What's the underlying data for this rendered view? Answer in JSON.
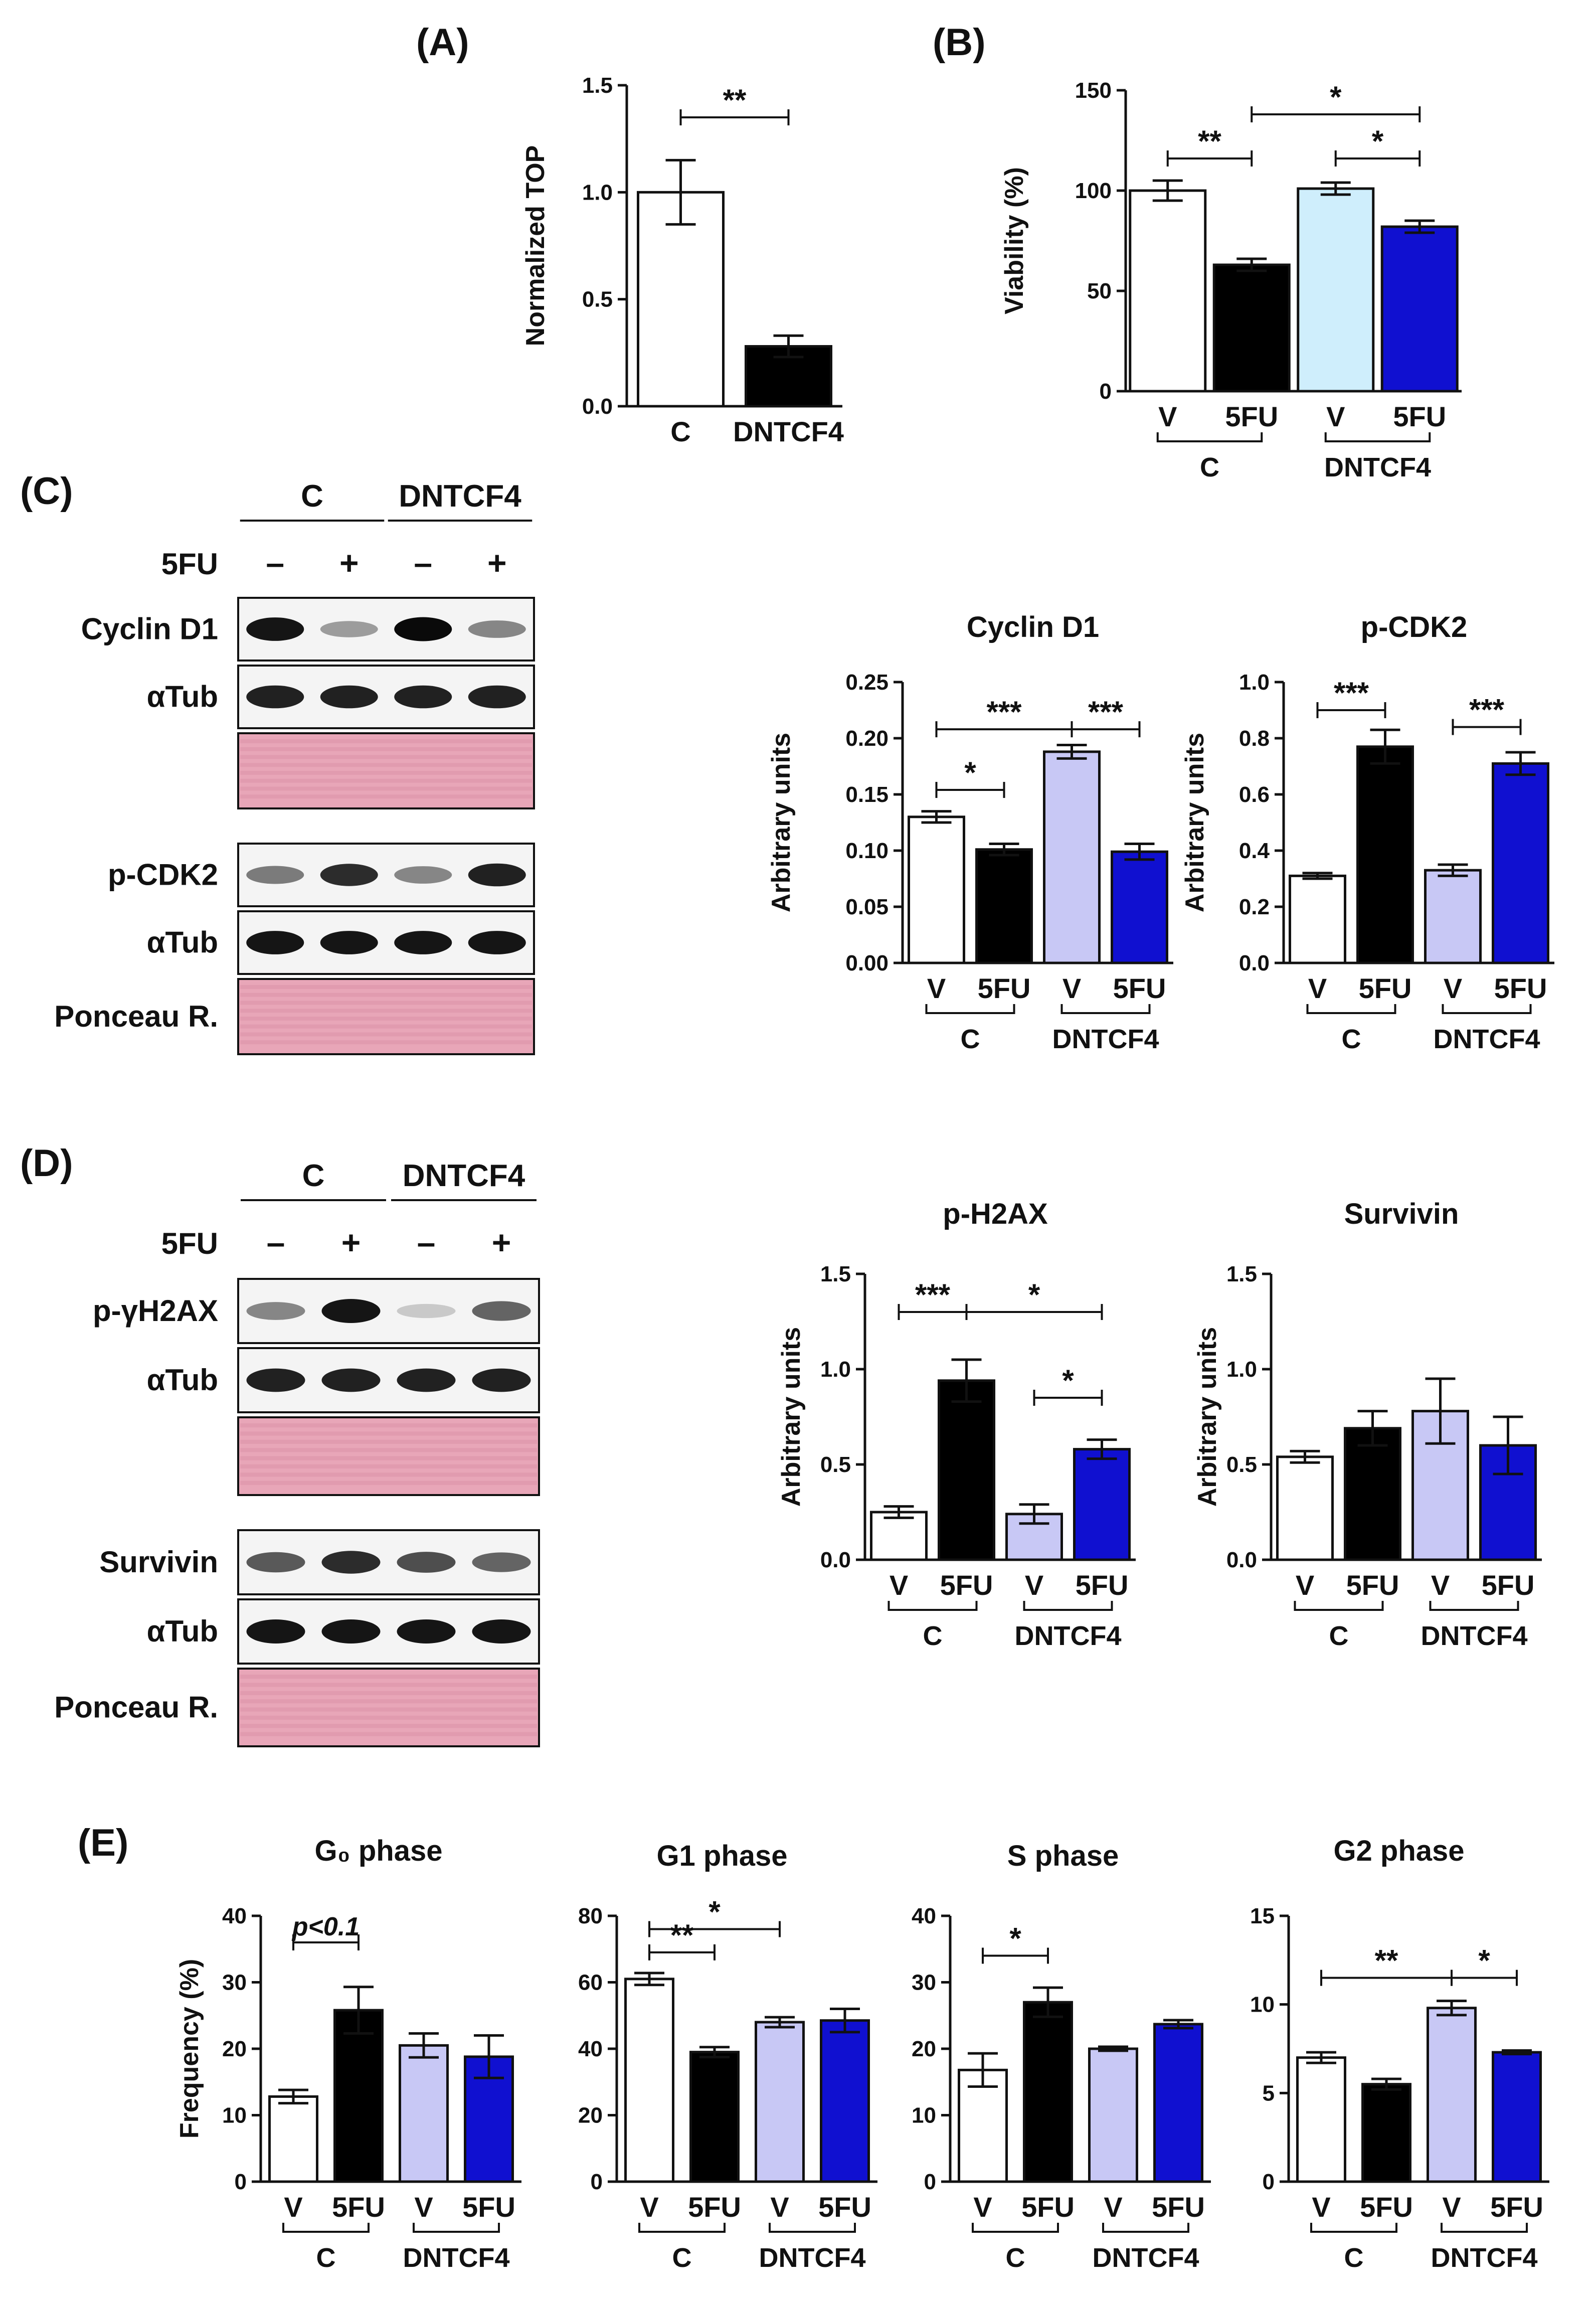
{
  "panels": {
    "A": "(A)",
    "B": "(B)",
    "C": "(C)",
    "D": "(D)",
    "E": "(E)"
  },
  "colors": {
    "white": "#ffffff",
    "black": "#000000",
    "light_blue": "#cfeefc",
    "lavender": "#c8c8f5",
    "blue": "#1010d0",
    "ponceau": "#e8a6b8",
    "blot_bg": "#f4f4f4"
  },
  "blots": {
    "C": {
      "group_labels": [
        "C",
        "DNTCF4"
      ],
      "treatment_label": "5FU",
      "signs": [
        "–",
        "+",
        "–",
        "+"
      ],
      "rows": [
        {
          "label": "Cyclin D1",
          "type": "band",
          "intensity": [
            0.95,
            0.35,
            1.0,
            0.45
          ]
        },
        {
          "label": "αTub",
          "type": "band",
          "intensity": [
            0.9,
            0.9,
            0.9,
            0.9
          ]
        },
        {
          "label": "",
          "type": "ponceau"
        },
        {
          "label": "p-CDK2",
          "type": "band",
          "intensity": [
            0.5,
            0.85,
            0.45,
            0.9
          ]
        },
        {
          "label": "αTub",
          "type": "band",
          "intensity": [
            0.95,
            0.95,
            0.95,
            0.95
          ]
        },
        {
          "label": "Ponceau R.",
          "type": "ponceau"
        }
      ]
    },
    "D": {
      "group_labels": [
        "C",
        "DNTCF4"
      ],
      "treatment_label": "5FU",
      "signs": [
        "–",
        "+",
        "–",
        "+"
      ],
      "rows": [
        {
          "label": "p-γH2AX",
          "type": "band",
          "intensity": [
            0.45,
            0.95,
            0.15,
            0.6
          ]
        },
        {
          "label": "αTub",
          "type": "band",
          "intensity": [
            0.9,
            0.9,
            0.9,
            0.9
          ]
        },
        {
          "label": "",
          "type": "ponceau"
        },
        {
          "label": "Survivin",
          "type": "band",
          "intensity": [
            0.65,
            0.85,
            0.7,
            0.6
          ]
        },
        {
          "label": "αTub",
          "type": "band",
          "intensity": [
            0.95,
            0.95,
            0.95,
            0.95
          ]
        },
        {
          "label": "Ponceau R.",
          "type": "ponceau"
        }
      ]
    }
  },
  "chart_data": [
    {
      "id": "A",
      "type": "bar",
      "title": "",
      "ylabel": "Normalized TOP",
      "xlabel": "",
      "ylim": [
        0,
        1.5
      ],
      "yticks": [
        "0.0",
        "0.5",
        "1.0",
        "1.5"
      ],
      "categories": [
        "C",
        "DNTCF4"
      ],
      "values": [
        1.0,
        0.28
      ],
      "errors": [
        0.15,
        0.05
      ],
      "fills": [
        "white",
        "black"
      ],
      "group_labels": [],
      "sig": [
        {
          "from": 0,
          "to": 1,
          "label": "**",
          "y": 1.35
        }
      ]
    },
    {
      "id": "B",
      "type": "bar",
      "title": "",
      "ylabel": "Viability (%)",
      "xlabel": "",
      "ylim": [
        0,
        150
      ],
      "yticks": [
        "0",
        "50",
        "100",
        "150"
      ],
      "categories": [
        "V",
        "5FU",
        "V",
        "5FU"
      ],
      "values": [
        100,
        63,
        101,
        82
      ],
      "errors": [
        5,
        3,
        3,
        3
      ],
      "fills": [
        "white",
        "black",
        "light_blue",
        "blue"
      ],
      "group_labels": [
        "C",
        "DNTCF4"
      ],
      "sig": [
        {
          "from": 0,
          "to": 1,
          "label": "**",
          "y": 116
        },
        {
          "from": 1,
          "to": 3,
          "label": "*",
          "y": 138
        },
        {
          "from": 2,
          "to": 3,
          "label": "*",
          "y": 116
        }
      ]
    },
    {
      "id": "C1",
      "type": "bar",
      "title": "Cyclin D1",
      "ylabel": "Arbitrary units",
      "xlabel": "",
      "ylim": [
        0,
        0.25
      ],
      "yticks": [
        "0.00",
        "0.05",
        "0.10",
        "0.15",
        "0.20",
        "0.25"
      ],
      "categories": [
        "V",
        "5FU",
        "V",
        "5FU"
      ],
      "values": [
        0.13,
        0.101,
        0.188,
        0.099
      ],
      "errors": [
        0.005,
        0.005,
        0.006,
        0.007
      ],
      "fills": [
        "white",
        "black",
        "lavender",
        "blue"
      ],
      "group_labels": [
        "C",
        "DNTCF4"
      ],
      "sig": [
        {
          "from": 0,
          "to": 1,
          "label": "*",
          "y": 0.154
        },
        {
          "from": 0,
          "to": 2,
          "label": "***",
          "y": 0.208
        },
        {
          "from": 2,
          "to": 3,
          "label": "***",
          "y": 0.208
        }
      ]
    },
    {
      "id": "C2",
      "type": "bar",
      "title": "p-CDK2",
      "ylabel": "Arbitrary units",
      "xlabel": "",
      "ylim": [
        0,
        1.0
      ],
      "yticks": [
        "0.0",
        "0.2",
        "0.4",
        "0.6",
        "0.8",
        "1.0"
      ],
      "categories": [
        "V",
        "5FU",
        "V",
        "5FU"
      ],
      "values": [
        0.31,
        0.77,
        0.33,
        0.71
      ],
      "errors": [
        0.01,
        0.06,
        0.02,
        0.04
      ],
      "fills": [
        "white",
        "black",
        "lavender",
        "blue"
      ],
      "group_labels": [
        "C",
        "DNTCF4"
      ],
      "sig": [
        {
          "from": 0,
          "to": 1,
          "label": "***",
          "y": 0.9
        },
        {
          "from": 2,
          "to": 3,
          "label": "***",
          "y": 0.84
        }
      ]
    },
    {
      "id": "D1",
      "type": "bar",
      "title": "p-H2AX",
      "ylabel": "Arbitrary units",
      "xlabel": "",
      "ylim": [
        0,
        1.5
      ],
      "yticks": [
        "0.0",
        "0.5",
        "1.0",
        "1.5"
      ],
      "categories": [
        "V",
        "5FU",
        "V",
        "5FU"
      ],
      "values": [
        0.25,
        0.94,
        0.24,
        0.58
      ],
      "errors": [
        0.03,
        0.11,
        0.05,
        0.05
      ],
      "fills": [
        "white",
        "black",
        "lavender",
        "blue"
      ],
      "group_labels": [
        "C",
        "DNTCF4"
      ],
      "sig": [
        {
          "from": 0,
          "to": 1,
          "label": "***",
          "y": 1.3
        },
        {
          "from": 1,
          "to": 3,
          "label": "*",
          "y": 1.3
        },
        {
          "from": 2,
          "to": 3,
          "label": "*",
          "y": 0.85
        }
      ]
    },
    {
      "id": "D2",
      "type": "bar",
      "title": "Survivin",
      "ylabel": "Arbitrary units",
      "xlabel": "",
      "ylim": [
        0,
        1.5
      ],
      "yticks": [
        "0.0",
        "0.5",
        "1.0",
        "1.5"
      ],
      "categories": [
        "V",
        "5FU",
        "V",
        "5FU"
      ],
      "values": [
        0.54,
        0.69,
        0.78,
        0.6
      ],
      "errors": [
        0.03,
        0.09,
        0.17,
        0.15
      ],
      "fills": [
        "white",
        "black",
        "lavender",
        "blue"
      ],
      "group_labels": [
        "C",
        "DNTCF4"
      ],
      "sig": []
    },
    {
      "id": "E1",
      "type": "bar",
      "title": "G₀ phase",
      "ylabel": "Frequency (%)",
      "xlabel": "",
      "ylim": [
        0,
        40
      ],
      "yticks": [
        "0",
        "10",
        "20",
        "30",
        "40"
      ],
      "categories": [
        "V",
        "5FU",
        "V",
        "5FU"
      ],
      "values": [
        12.8,
        25.8,
        20.5,
        18.8
      ],
      "errors": [
        1.0,
        3.5,
        1.8,
        3.2
      ],
      "fills": [
        "white",
        "black",
        "lavender",
        "blue"
      ],
      "group_labels": [
        "C",
        "DNTCF4"
      ],
      "sig": [
        {
          "from": 0,
          "to": 1,
          "label": "p<0.1",
          "y": 36,
          "italic": true
        }
      ]
    },
    {
      "id": "E2",
      "type": "bar",
      "title": "G1 phase",
      "ylabel": "",
      "xlabel": "",
      "ylim": [
        0,
        80
      ],
      "yticks": [
        "0",
        "20",
        "40",
        "60",
        "80"
      ],
      "categories": [
        "V",
        "5FU",
        "V",
        "5FU"
      ],
      "values": [
        61,
        39,
        48,
        48.5
      ],
      "errors": [
        1.8,
        1.5,
        1.5,
        3.5
      ],
      "fills": [
        "white",
        "black",
        "lavender",
        "blue"
      ],
      "group_labels": [
        "C",
        "DNTCF4"
      ],
      "sig": [
        {
          "from": 0,
          "to": 1,
          "label": "**",
          "y": 69
        },
        {
          "from": 0,
          "to": 2,
          "label": "*",
          "y": 76
        }
      ]
    },
    {
      "id": "E3",
      "type": "bar",
      "title": "S phase",
      "ylabel": "",
      "xlabel": "",
      "ylim": [
        0,
        40
      ],
      "yticks": [
        "0",
        "10",
        "20",
        "30",
        "40"
      ],
      "categories": [
        "V",
        "5FU",
        "V",
        "5FU"
      ],
      "values": [
        16.8,
        27,
        20,
        23.7
      ],
      "errors": [
        2.5,
        2.2,
        0.3,
        0.6
      ],
      "fills": [
        "white",
        "black",
        "lavender",
        "blue"
      ],
      "group_labels": [
        "C",
        "DNTCF4"
      ],
      "sig": [
        {
          "from": 0,
          "to": 1,
          "label": "*",
          "y": 34
        }
      ]
    },
    {
      "id": "E4",
      "type": "bar",
      "title": "G2 phase",
      "ylabel": "",
      "xlabel": "",
      "ylim": [
        0,
        15
      ],
      "yticks": [
        "0",
        "5",
        "10",
        "15"
      ],
      "categories": [
        "V",
        "5FU",
        "V",
        "5FU"
      ],
      "values": [
        7.0,
        5.5,
        9.8,
        7.3
      ],
      "errors": [
        0.3,
        0.3,
        0.4,
        0.1
      ],
      "fills": [
        "white",
        "black",
        "lavender",
        "blue"
      ],
      "group_labels": [
        "C",
        "DNTCF4"
      ],
      "sig": [
        {
          "from": 0,
          "to": 2,
          "label": "**",
          "y": 11.5
        },
        {
          "from": 2,
          "to": 3,
          "label": "*",
          "y": 11.5
        }
      ]
    }
  ]
}
